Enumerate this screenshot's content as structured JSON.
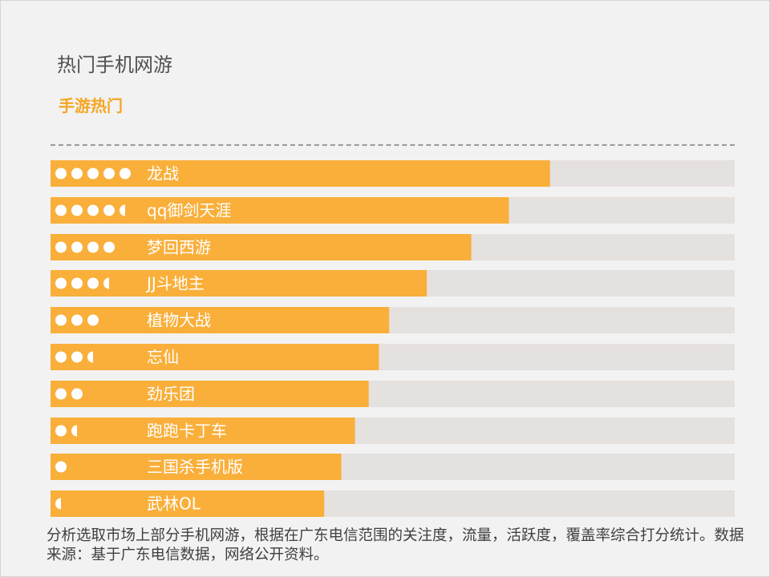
{
  "header": {
    "title": "热门手机网游",
    "subtitle": "手游热门"
  },
  "colors": {
    "bar": "#f9af3a",
    "track": "#e5e1df",
    "text": "#ffffff"
  },
  "chart_data": {
    "type": "bar",
    "orientation": "horizontal",
    "title": "手游热门",
    "xlabel": "",
    "ylabel": "",
    "xlim": [
      0,
      100
    ],
    "categories": [
      "龙战",
      "qq御剑天涯",
      "梦回西游",
      "JJ斗地主",
      "植物大战",
      "忘仙",
      "劲乐团",
      "跑跑卡丁车",
      "三国杀手机版",
      "武林OL"
    ],
    "values": [
      73,
      67,
      61.5,
      55,
      49.5,
      48,
      46.5,
      44.5,
      42.5,
      40
    ],
    "ratings": [
      5,
      4.5,
      4,
      3.5,
      3,
      2.5,
      2,
      1.5,
      1,
      0.5
    ]
  },
  "footnote": "分析选取市场上部分手机网游，根据在广东电信范围的关注度，流量，活跃度，覆盖率综合打分统计。数据来源：基于广东电信数据，网络公开资料。"
}
